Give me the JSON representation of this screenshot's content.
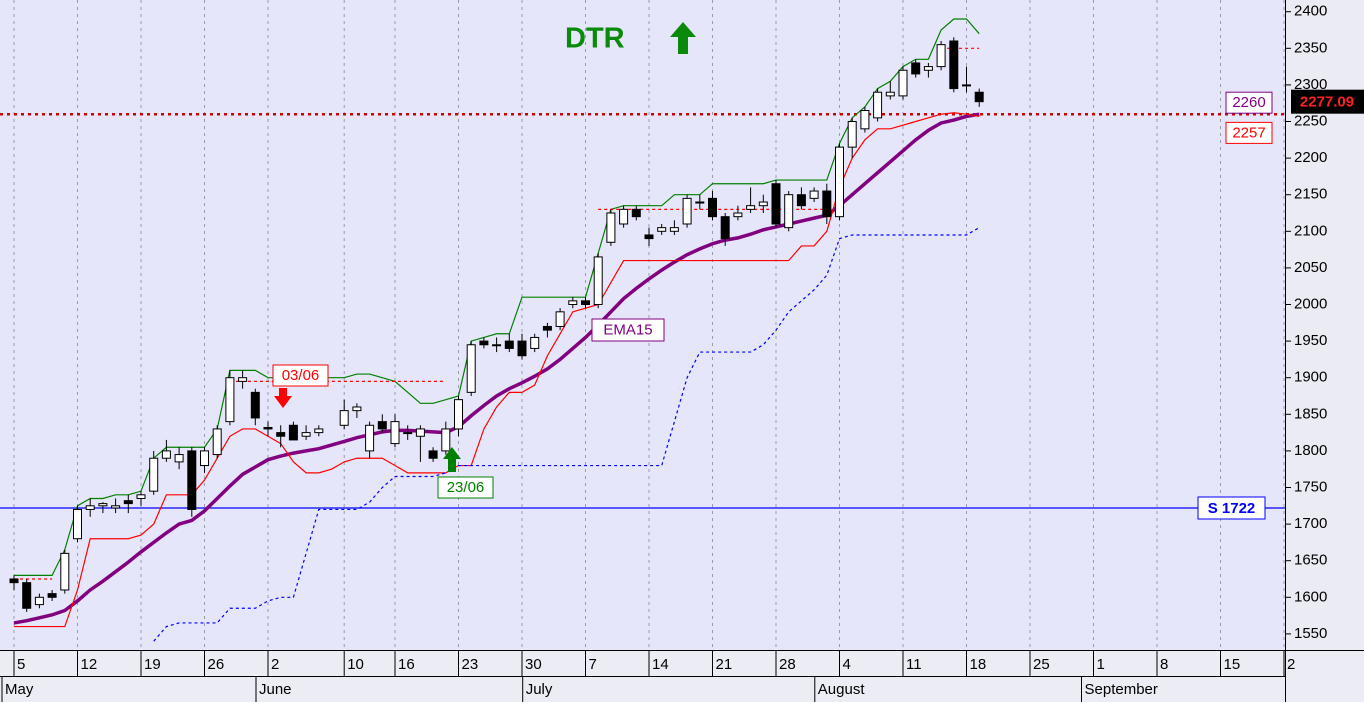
{
  "chart_data": {
    "type": "candlestick",
    "title": "DTR",
    "categories": [
      "5",
      null,
      null,
      null,
      null,
      "12",
      null,
      null,
      null,
      null,
      "19",
      null,
      null,
      null,
      null,
      "26",
      null,
      null,
      null,
      null,
      "2",
      null,
      null,
      null,
      null,
      null,
      "10",
      null,
      null,
      null,
      "16",
      null,
      null,
      null,
      null,
      "23",
      null,
      null,
      null,
      null,
      "30",
      null,
      null,
      null,
      null,
      "7",
      null,
      null,
      null,
      null,
      "14",
      null,
      null,
      null,
      null,
      "21",
      null,
      null,
      null,
      null,
      "28",
      null,
      null,
      null,
      null,
      "4",
      null,
      null,
      null,
      null,
      "11",
      null,
      null,
      null,
      null,
      "18",
      null,
      null,
      null,
      null,
      "25",
      null,
      null,
      null,
      null,
      "1",
      null,
      null,
      null,
      null,
      "8",
      null,
      null,
      null,
      null,
      "15",
      null,
      null,
      null,
      null,
      "2"
    ],
    "months": [
      "May",
      null,
      null,
      null,
      null,
      null,
      null,
      null,
      null,
      null,
      null,
      null,
      null,
      null,
      null,
      null,
      null,
      null,
      null,
      null,
      "June",
      null,
      null,
      null,
      null,
      null,
      null,
      null,
      null,
      null,
      null,
      null,
      null,
      null,
      null,
      null,
      null,
      null,
      null,
      null,
      null,
      "July",
      null,
      null,
      null,
      null,
      null,
      null,
      null,
      null,
      null,
      null,
      null,
      null,
      null,
      null,
      null,
      null,
      null,
      null,
      null,
      null,
      null,
      null,
      "August",
      null,
      null,
      null,
      null,
      null,
      null,
      null,
      null,
      null,
      null,
      null,
      null,
      null,
      null,
      null,
      null,
      null,
      null,
      null,
      null,
      "September",
      null,
      null,
      null,
      null,
      null,
      null,
      null,
      null,
      null,
      null,
      null,
      null,
      null,
      null,
      null
    ],
    "open": [
      1625,
      1620,
      1590,
      1605,
      1610,
      1680,
      1720,
      1725,
      1722,
      1732,
      1735,
      1745,
      1790,
      1785,
      1800,
      1780,
      1795,
      1840,
      1895,
      1880,
      1832,
      1825,
      1835,
      1820,
      1825,
      null,
      1835,
      1855,
      1800,
      1840,
      1810,
      1825,
      1820,
      1800,
      1800,
      1830,
      1880,
      1950,
      1945,
      1950,
      1950,
      1940,
      1970,
      1970,
      2000,
      2005,
      2000,
      2085,
      2110,
      2130,
      2095,
      2100,
      2100,
      2110,
      2140,
      2145,
      2120,
      2120,
      2130,
      2135,
      2165,
      2105,
      2150,
      2145,
      2155,
      2120,
      2215,
      2240,
      2255,
      2285,
      2285,
      2330,
      2320,
      2325,
      2360,
      2300,
      2290,
      null,
      null,
      null,
      null,
      null,
      null,
      null,
      null,
      null,
      null,
      null,
      null,
      null,
      null,
      null,
      null,
      null,
      null,
      null,
      null,
      null,
      null,
      null,
      null
    ],
    "high": [
      1630,
      1625,
      1605,
      1610,
      1665,
      1725,
      1735,
      1730,
      1735,
      1740,
      1745,
      1800,
      1815,
      1805,
      1805,
      1805,
      1835,
      1910,
      1910,
      1885,
      1840,
      1835,
      1840,
      1835,
      1835,
      null,
      1870,
      1865,
      1840,
      1850,
      1850,
      1835,
      1835,
      1805,
      1840,
      1875,
      1950,
      1955,
      1955,
      1960,
      1960,
      1960,
      1975,
      1995,
      2010,
      2010,
      2070,
      2130,
      2135,
      2135,
      2105,
      2110,
      2115,
      2150,
      2150,
      2155,
      2125,
      2135,
      2160,
      2150,
      2170,
      2155,
      2160,
      2160,
      2165,
      2220,
      2255,
      2270,
      2295,
      2305,
      2325,
      2335,
      2330,
      2360,
      2365,
      2325,
      2295,
      null,
      null,
      null,
      null,
      null,
      null,
      null,
      null,
      null,
      null,
      null,
      null,
      null,
      null,
      null,
      null,
      null,
      null,
      null,
      null,
      null,
      null,
      null,
      null
    ],
    "low": [
      1610,
      1580,
      1585,
      1595,
      1605,
      1675,
      1710,
      1715,
      1715,
      1715,
      1725,
      1740,
      1785,
      1775,
      1710,
      1770,
      1790,
      1835,
      1885,
      1835,
      1820,
      1805,
      1815,
      1815,
      1820,
      null,
      1830,
      1845,
      1790,
      1825,
      1805,
      1815,
      1785,
      1785,
      1795,
      1820,
      1875,
      1940,
      1935,
      1935,
      1925,
      1935,
      1955,
      1965,
      1995,
      1995,
      1995,
      2080,
      2105,
      2115,
      2080,
      2095,
      2095,
      2105,
      2130,
      2115,
      2080,
      2115,
      2125,
      2125,
      2105,
      2100,
      2130,
      2140,
      2110,
      2115,
      2200,
      2235,
      2250,
      2280,
      2280,
      2310,
      2310,
      2320,
      2290,
      2290,
      2270,
      null,
      null,
      null,
      null,
      null,
      null,
      null,
      null,
      null,
      null,
      null,
      null,
      null,
      null,
      null,
      null,
      null,
      null,
      null,
      null,
      null,
      null,
      null,
      null
    ],
    "close": [
      1620,
      1585,
      1600,
      1600,
      1660,
      1720,
      1725,
      1728,
      1725,
      1728,
      1740,
      1790,
      1800,
      1795,
      1720,
      1800,
      1830,
      1900,
      1900,
      1845,
      1830,
      1820,
      1815,
      1825,
      1830,
      null,
      1855,
      1860,
      1835,
      1830,
      1840,
      1825,
      1830,
      1790,
      1830,
      1870,
      1945,
      1945,
      1945,
      1940,
      1930,
      1955,
      1965,
      1990,
      2005,
      2000,
      2065,
      2125,
      2130,
      2120,
      2090,
      2105,
      2105,
      2145,
      2140,
      2120,
      2090,
      2125,
      2135,
      2140,
      2110,
      2150,
      2135,
      2155,
      2120,
      2215,
      2250,
      2265,
      2290,
      2290,
      2320,
      2315,
      2325,
      2355,
      2295,
      2300,
      2277.09,
      null,
      null,
      null,
      null,
      null,
      null,
      null,
      null,
      null,
      null,
      null,
      null,
      null,
      null,
      null,
      null,
      null,
      null,
      null,
      null,
      null,
      null,
      null,
      null
    ],
    "up_color": "#ffffff",
    "down_color": "#000000",
    "series": [
      {
        "name": "EMA15",
        "color": "#800080",
        "dashed": false,
        "values": [
          1565,
          1568,
          1572,
          1576,
          1582,
          1595,
          1610,
          1622,
          1635,
          1648,
          1662,
          1675,
          1688,
          1700,
          1705,
          1718,
          1735,
          1752,
          1768,
          1778,
          1788,
          1793,
          1797,
          1800,
          1803,
          1808,
          1813,
          1818,
          1822,
          1826,
          1828,
          1828,
          1827,
          1826,
          1825,
          1833,
          1848,
          1862,
          1875,
          1885,
          1893,
          1902,
          1912,
          1925,
          1940,
          1955,
          1972,
          1990,
          2008,
          2022,
          2035,
          2047,
          2058,
          2068,
          2076,
          2083,
          2088,
          2091,
          2096,
          2102,
          2106,
          2110,
          2114,
          2118,
          2122,
          2135,
          2150,
          2165,
          2180,
          2195,
          2210,
          2225,
          2238,
          2248,
          2252,
          2257,
          2260,
          null,
          null,
          null,
          null,
          null,
          null,
          null,
          null,
          null,
          null,
          null,
          null,
          null,
          null,
          null,
          null,
          null,
          null,
          null,
          null,
          null,
          null,
          null,
          null
        ]
      },
      {
        "color": "#008000",
        "dashed": false,
        "values": [
          1630,
          1630,
          1630,
          1630,
          1665,
          1725,
          1735,
          1735,
          1740,
          1740,
          1745,
          1790,
          1805,
          1805,
          1805,
          1805,
          1830,
          1910,
          1910,
          1910,
          1900,
          1900,
          1900,
          1900,
          1900,
          1900,
          1900,
          1905,
          1905,
          1900,
          1895,
          1880,
          1865,
          1865,
          1870,
          1875,
          1950,
          1955,
          1960,
          1960,
          2010,
          2010,
          2010,
          2010,
          2010,
          2010,
          2070,
          2130,
          2135,
          2135,
          2135,
          2135,
          2150,
          2150,
          2150,
          2165,
          2165,
          2165,
          2165,
          2165,
          2170,
          2170,
          2170,
          2170,
          2170,
          2220,
          2255,
          2270,
          2295,
          2305,
          2325,
          2335,
          2335,
          2375,
          2390,
          2390,
          2370,
          null,
          null,
          null,
          null,
          null,
          null,
          null,
          null,
          null,
          null,
          null,
          null,
          null,
          null,
          null,
          null,
          null,
          null,
          null,
          null,
          null,
          null,
          null,
          null
        ]
      },
      {
        "color": "#ff0000",
        "dashed": false,
        "values": [
          1560,
          1560,
          1560,
          1560,
          1560,
          1610,
          1680,
          1680,
          1680,
          1680,
          1685,
          1700,
          1740,
          1740,
          1740,
          1760,
          1790,
          1820,
          1830,
          1830,
          1820,
          1810,
          1785,
          1770,
          1770,
          1775,
          1785,
          1790,
          1790,
          1790,
          1780,
          1770,
          1770,
          1770,
          1770,
          1780,
          1780,
          1830,
          1860,
          1880,
          1880,
          1890,
          1930,
          1960,
          1990,
          1995,
          2000,
          2030,
          2060,
          2060,
          2060,
          2060,
          2060,
          2060,
          2060,
          2060,
          2060,
          2060,
          2060,
          2060,
          2060,
          2060,
          2080,
          2080,
          2100,
          2160,
          2200,
          2225,
          2240,
          2240,
          2245,
          2250,
          2255,
          2260,
          2262,
          2260,
          2257,
          null,
          null,
          null,
          null,
          null,
          null,
          null,
          null,
          null,
          null,
          null,
          null,
          null,
          null,
          null,
          null,
          null,
          null,
          null,
          null,
          null,
          null,
          null,
          null
        ]
      },
      {
        "color": "#ff0000",
        "dashed": true,
        "values": [
          1625,
          1625,
          1625,
          1625,
          null,
          null,
          null,
          null,
          null,
          null,
          null,
          null,
          null,
          null,
          null,
          null,
          null,
          1895,
          1895,
          1895,
          1895,
          1895,
          1895,
          1895,
          1895,
          1895,
          1895,
          1895,
          1895,
          1895,
          1895,
          1895,
          1895,
          1895,
          1895,
          null,
          null,
          null,
          null,
          null,
          null,
          null,
          null,
          null,
          null,
          null,
          2130,
          2130,
          2130,
          2130,
          2130,
          2130,
          2130,
          2130,
          2130,
          2130,
          2130,
          2130,
          2130,
          2130,
          2130,
          2130,
          2130,
          2130,
          2130,
          null,
          null,
          null,
          null,
          null,
          null,
          null,
          null,
          2350,
          2350,
          2350,
          2350,
          null,
          null,
          null,
          null,
          null,
          null,
          null,
          null,
          null,
          null,
          null,
          null,
          null,
          null,
          null,
          null,
          null,
          null,
          null,
          null,
          null,
          null,
          null,
          null
        ]
      },
      {
        "color": "#0000ff",
        "dashed": true,
        "values": [
          null,
          null,
          null,
          null,
          null,
          null,
          null,
          null,
          null,
          null,
          null,
          1540,
          1560,
          1565,
          1565,
          1565,
          1565,
          1585,
          1585,
          1585,
          1595,
          1600,
          1600,
          1660,
          1720,
          1720,
          1720,
          1720,
          1730,
          1750,
          1765,
          1765,
          1765,
          1765,
          1770,
          1780,
          1780,
          1780,
          1780,
          1780,
          1780,
          1780,
          1780,
          1780,
          1780,
          1780,
          1780,
          1780,
          1780,
          1780,
          1780,
          1780,
          1840,
          1900,
          1935,
          1935,
          1935,
          1935,
          1935,
          1945,
          1965,
          1990,
          2005,
          2020,
          2040,
          2090,
          2095,
          2095,
          2095,
          2095,
          2095,
          2095,
          2095,
          2095,
          2095,
          2095,
          2105,
          null,
          null,
          null,
          null,
          null,
          null,
          null,
          null,
          null,
          null,
          null,
          null,
          null,
          null,
          null,
          null,
          null,
          null,
          null,
          null,
          null,
          null,
          null,
          null
        ]
      }
    ],
    "hlines": [
      {
        "label": "S 1722",
        "value": 1722,
        "color": "#0000ff"
      },
      {
        "value": 2260,
        "color": "#cc0000",
        "dashed": true
      }
    ],
    "annotations": [
      "03/06",
      "23/06"
    ],
    "ylim": [
      1528,
      2416
    ],
    "yticks": [
      1550,
      1600,
      1650,
      1700,
      1750,
      1800,
      1850,
      1900,
      1950,
      2000,
      2050,
      2100,
      2150,
      2200,
      2250,
      2300,
      2350,
      2400
    ],
    "grid": true
  }
}
